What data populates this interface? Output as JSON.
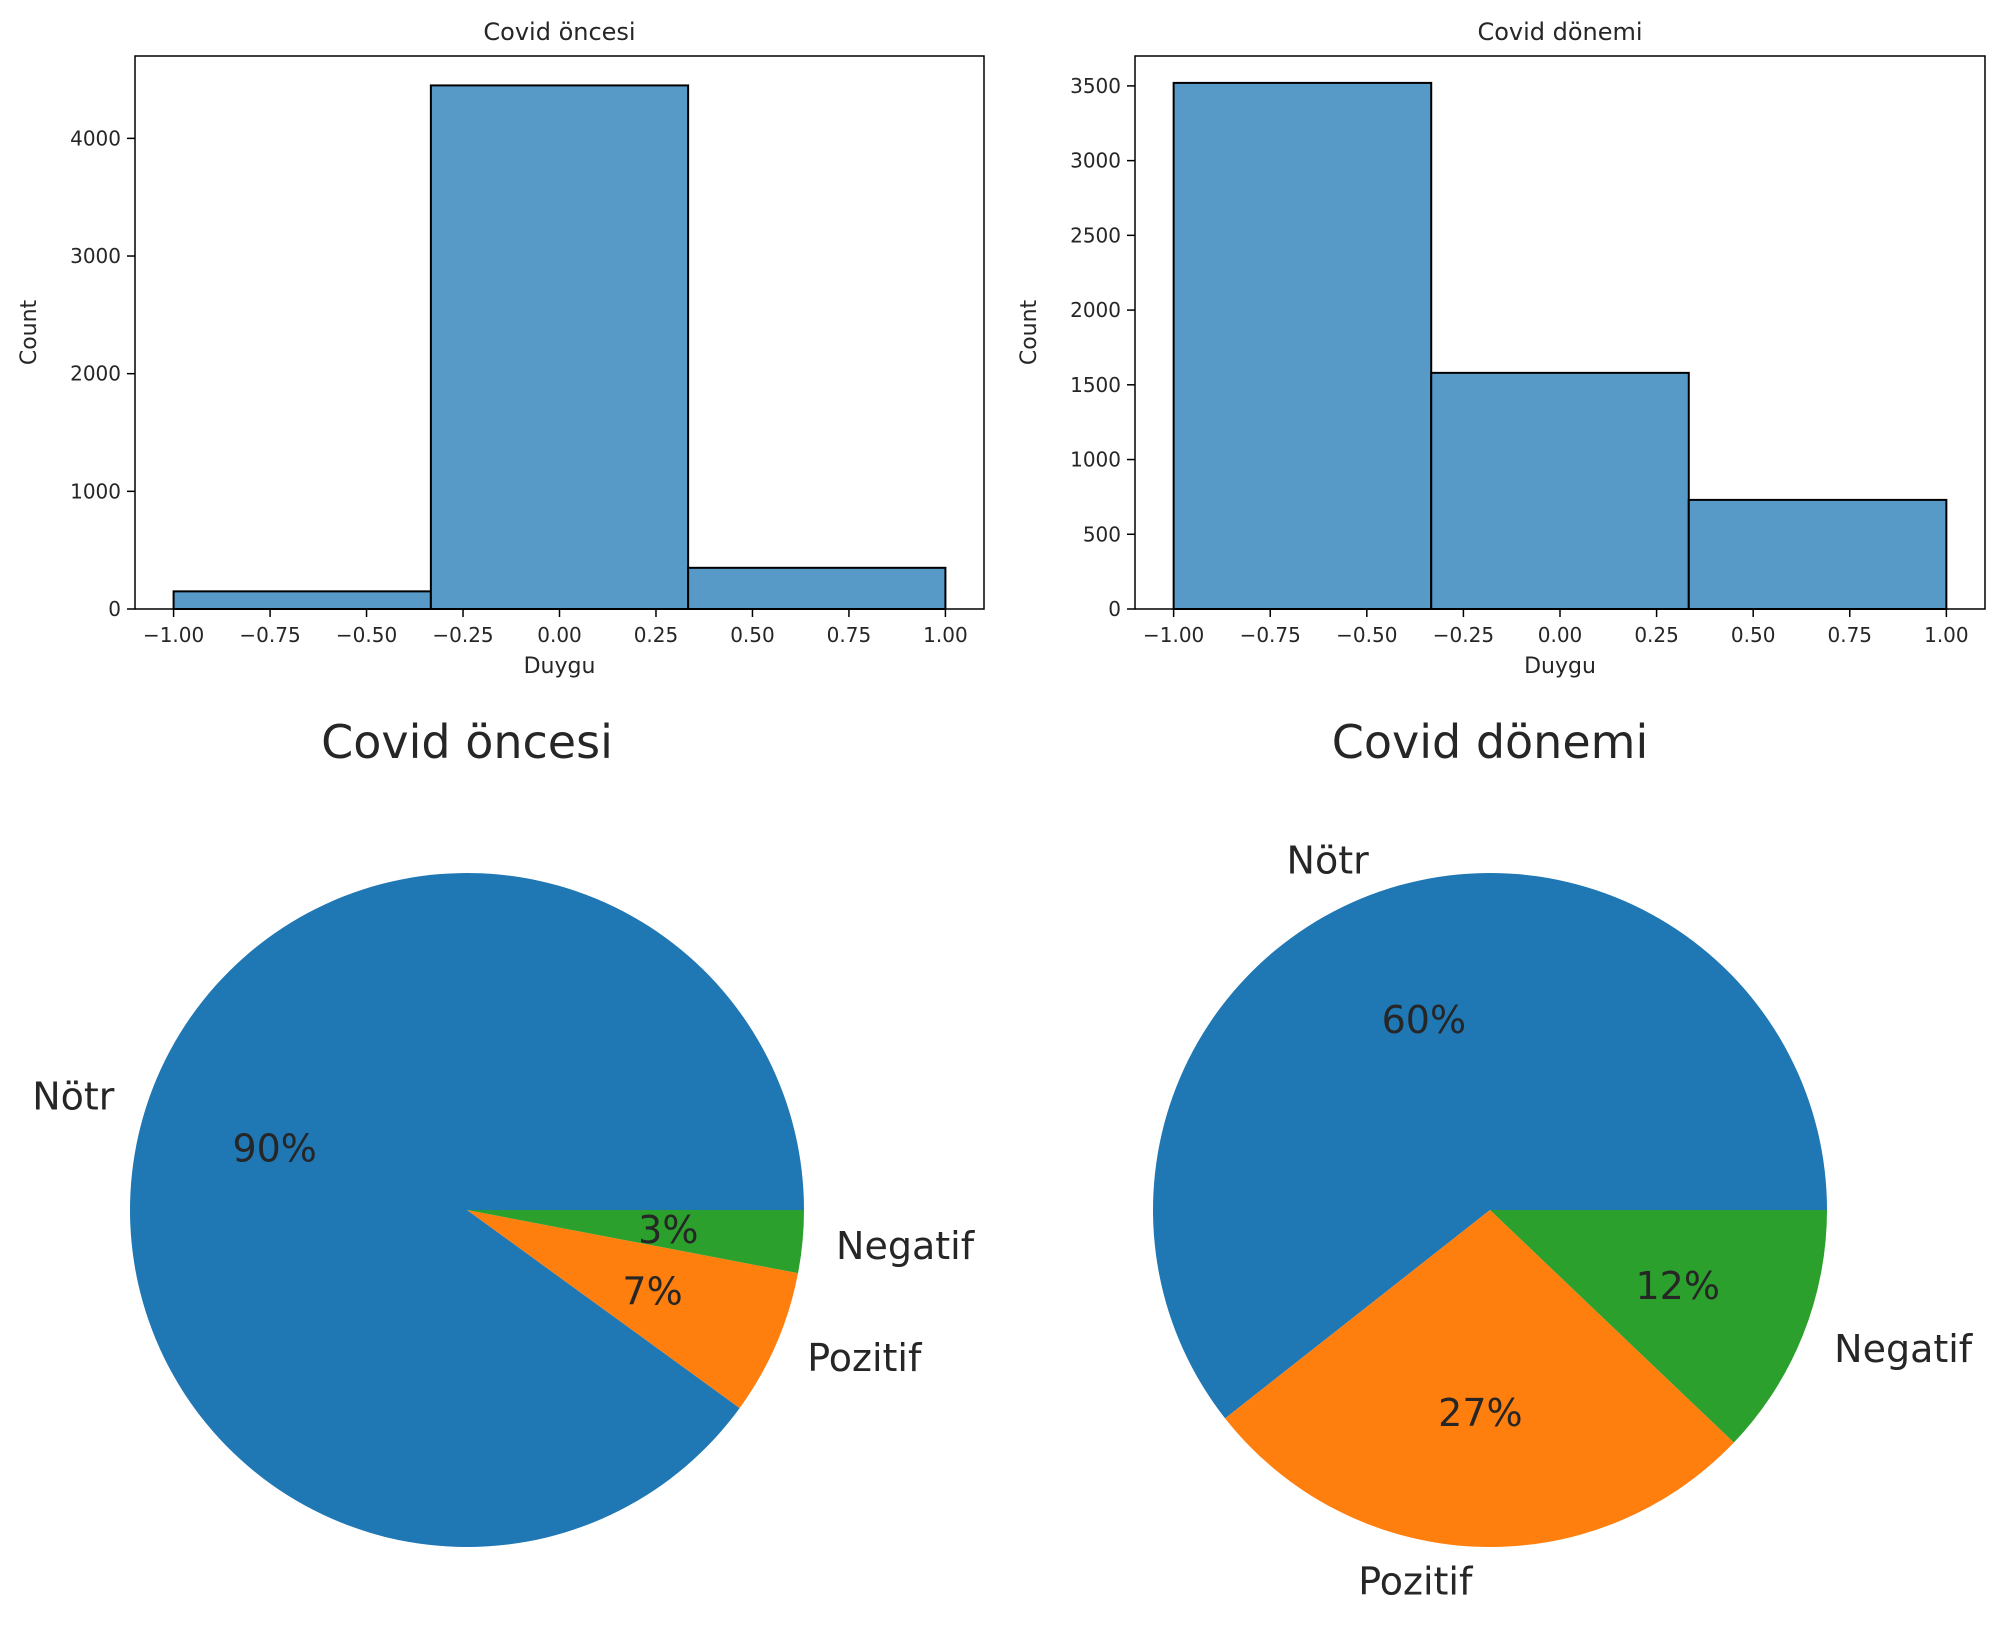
{
  "chart_data": [
    {
      "type": "bar",
      "title": "Covid öncesi",
      "xlabel": "Duygu",
      "ylabel": "Count",
      "xlim": [
        -1.1,
        1.1
      ],
      "ylim": [
        0,
        4700
      ],
      "bins": [
        {
          "x0": -1.0,
          "x1": -0.3333,
          "count": 150
        },
        {
          "x0": -0.3333,
          "x1": 0.3333,
          "count": 4450
        },
        {
          "x0": 0.3333,
          "x1": 1.0,
          "count": 350
        }
      ],
      "xticks": [
        -1.0,
        -0.75,
        -0.5,
        -0.25,
        0.0,
        0.25,
        0.5,
        0.75,
        1.0
      ],
      "xtick_labels": [
        "−1.00",
        "−0.75",
        "−0.50",
        "−0.25",
        "0.00",
        "0.25",
        "0.50",
        "0.75",
        "1.00"
      ],
      "yticks": [
        0,
        1000,
        2000,
        3000,
        4000
      ],
      "ytick_labels": [
        "0",
        "1000",
        "2000",
        "3000",
        "4000"
      ],
      "grid": false
    },
    {
      "type": "bar",
      "title": "Covid dönemi",
      "xlabel": "Duygu",
      "ylabel": "Count",
      "xlim": [
        -1.1,
        1.1
      ],
      "ylim": [
        0,
        3700
      ],
      "bins": [
        {
          "x0": -1.0,
          "x1": -0.3333,
          "count": 3520
        },
        {
          "x0": -0.3333,
          "x1": 0.3333,
          "count": 1580
        },
        {
          "x0": 0.3333,
          "x1": 1.0,
          "count": 730
        }
      ],
      "xticks": [
        -1.0,
        -0.75,
        -0.5,
        -0.25,
        0.0,
        0.25,
        0.5,
        0.75,
        1.0
      ],
      "xtick_labels": [
        "−1.00",
        "−0.75",
        "−0.50",
        "−0.25",
        "0.00",
        "0.25",
        "0.50",
        "0.75",
        "1.00"
      ],
      "yticks": [
        0,
        500,
        1000,
        1500,
        2000,
        2500,
        3000,
        3500
      ],
      "ytick_labels": [
        "0",
        "500",
        "1000",
        "1500",
        "2000",
        "2500",
        "3000",
        "3500"
      ],
      "grid": false
    },
    {
      "type": "pie",
      "title": "Covid öncesi",
      "slices": [
        {
          "label": "Nötr",
          "value": 90,
          "pct_label": "90%"
        },
        {
          "label": "Pozitif",
          "value": 7,
          "pct_label": "7%"
        },
        {
          "label": "Negatif",
          "value": 3,
          "pct_label": "3%"
        }
      ]
    },
    {
      "type": "pie",
      "title": "Covid dönemi",
      "slices": [
        {
          "label": "Nötr",
          "value": 60,
          "pct_label": "60%"
        },
        {
          "label": "Pozitif",
          "value": 27,
          "pct_label": "27%"
        },
        {
          "label": "Negatif",
          "value": 12,
          "pct_label": "12%"
        }
      ]
    }
  ],
  "colors": {
    "hist_fill": "#5799c7",
    "nötr": "#1f77b4",
    "pozitif": "#ff7f0e",
    "negatif": "#2ca02c"
  }
}
